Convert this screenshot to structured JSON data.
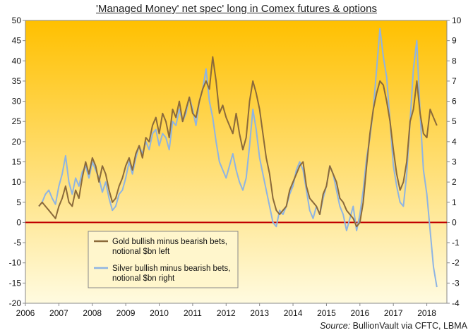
{
  "chart_data": {
    "type": "line",
    "title": "'Managed Money' net spec' long in Comex futures & options",
    "source_label": "Source:",
    "source_text": "BullionVault via CFTC, LBMA",
    "x_ticks": [
      "2006",
      "2007",
      "2008",
      "2009",
      "2010",
      "2011",
      "2012",
      "2013",
      "2014",
      "2015",
      "2016",
      "2017",
      "2018"
    ],
    "xlim": [
      2006,
      2018.6
    ],
    "y_left": {
      "lim": [
        -20,
        50
      ],
      "ticks": [
        "-20",
        "-15",
        "-10",
        "-5",
        "0",
        "5",
        "10",
        "15",
        "20",
        "25",
        "30",
        "35",
        "40",
        "45",
        "50"
      ]
    },
    "y_right": {
      "lim": [
        -4,
        10
      ],
      "ticks": [
        "-4",
        "-3",
        "-2",
        "-1",
        "0",
        "1",
        "2",
        "3",
        "4",
        "5",
        "6",
        "7",
        "8",
        "9",
        "10"
      ]
    },
    "zero_line_color": "#c00000",
    "background_gradient": [
      "#ffc000",
      "#fffbe0"
    ],
    "legend_position": "lower-left",
    "series": [
      {
        "name": "Gold bullish minus bearish bets, notional $bn left",
        "legend_line1": "Gold bullish minus bearish bets,",
        "legend_line2": "notional $bn left",
        "axis": "left",
        "color": "#8b6a3a",
        "x": [
          2006.4,
          2006.5,
          2006.6,
          2006.7,
          2006.8,
          2006.9,
          2007.0,
          2007.1,
          2007.2,
          2007.3,
          2007.4,
          2007.5,
          2007.6,
          2007.7,
          2007.8,
          2007.9,
          2008.0,
          2008.1,
          2008.2,
          2008.3,
          2008.4,
          2008.5,
          2008.6,
          2008.7,
          2008.8,
          2008.9,
          2009.0,
          2009.1,
          2009.2,
          2009.3,
          2009.4,
          2009.5,
          2009.6,
          2009.7,
          2009.8,
          2009.9,
          2010.0,
          2010.1,
          2010.2,
          2010.3,
          2010.4,
          2010.5,
          2010.6,
          2010.7,
          2010.8,
          2010.9,
          2011.0,
          2011.1,
          2011.2,
          2011.3,
          2011.4,
          2011.5,
          2011.6,
          2011.7,
          2011.8,
          2011.9,
          2012.0,
          2012.1,
          2012.2,
          2012.3,
          2012.4,
          2012.5,
          2012.6,
          2012.7,
          2012.8,
          2012.9,
          2013.0,
          2013.1,
          2013.2,
          2013.3,
          2013.4,
          2013.5,
          2013.6,
          2013.7,
          2013.8,
          2013.9,
          2014.0,
          2014.1,
          2014.2,
          2014.3,
          2014.4,
          2014.5,
          2014.6,
          2014.7,
          2014.8,
          2014.9,
          2015.0,
          2015.1,
          2015.2,
          2015.3,
          2015.4,
          2015.5,
          2015.6,
          2015.7,
          2015.8,
          2015.9,
          2016.0,
          2016.1,
          2016.2,
          2016.3,
          2016.4,
          2016.5,
          2016.6,
          2016.7,
          2016.8,
          2016.9,
          2017.0,
          2017.1,
          2017.2,
          2017.3,
          2017.4,
          2017.5,
          2017.6,
          2017.7,
          2017.8,
          2017.9,
          2018.0,
          2018.1,
          2018.2,
          2018.3
        ],
        "values": [
          4,
          5,
          4,
          3,
          2,
          1,
          4,
          6,
          9,
          5,
          4,
          8,
          6,
          11,
          15,
          12,
          16,
          14,
          10,
          14,
          12,
          8,
          5,
          6,
          9,
          11,
          14,
          16,
          13,
          17,
          19,
          16,
          21,
          20,
          24,
          26,
          22,
          27,
          25,
          21,
          28,
          26,
          30,
          25,
          28,
          31,
          27,
          26,
          30,
          33,
          35,
          33,
          41,
          35,
          27,
          29,
          26,
          24,
          22,
          27,
          22,
          18,
          21,
          30,
          35,
          32,
          28,
          22,
          16,
          12,
          6,
          3,
          2,
          3,
          4,
          8,
          10,
          12,
          14,
          15,
          9,
          6,
          5,
          4,
          2,
          7,
          9,
          14,
          12,
          10,
          6,
          5,
          3,
          2,
          1,
          -1,
          0,
          5,
          14,
          22,
          28,
          32,
          35,
          34,
          30,
          25,
          18,
          12,
          8,
          10,
          15,
          25,
          28,
          35,
          27,
          22,
          21,
          28,
          26,
          24
        ]
      },
      {
        "name": "Silver bullish minus bearish bets, notional $bn right",
        "legend_line1": "Silver bullish minus bearish bets,",
        "legend_line2": "notional $bn right",
        "axis": "right",
        "color": "#8eb4e3",
        "x": [
          2006.4,
          2006.5,
          2006.6,
          2006.7,
          2006.8,
          2006.9,
          2007.0,
          2007.1,
          2007.2,
          2007.3,
          2007.4,
          2007.5,
          2007.6,
          2007.7,
          2007.8,
          2007.9,
          2008.0,
          2008.1,
          2008.2,
          2008.3,
          2008.4,
          2008.5,
          2008.6,
          2008.7,
          2008.8,
          2008.9,
          2009.0,
          2009.1,
          2009.2,
          2009.3,
          2009.4,
          2009.5,
          2009.6,
          2009.7,
          2009.8,
          2009.9,
          2010.0,
          2010.1,
          2010.2,
          2010.3,
          2010.4,
          2010.5,
          2010.6,
          2010.7,
          2010.8,
          2010.9,
          2011.0,
          2011.1,
          2011.2,
          2011.3,
          2011.4,
          2011.5,
          2011.6,
          2011.7,
          2011.8,
          2011.9,
          2012.0,
          2012.1,
          2012.2,
          2012.3,
          2012.4,
          2012.5,
          2012.6,
          2012.7,
          2012.8,
          2012.9,
          2013.0,
          2013.1,
          2013.2,
          2013.3,
          2013.4,
          2013.5,
          2013.6,
          2013.7,
          2013.8,
          2013.9,
          2014.0,
          2014.1,
          2014.2,
          2014.3,
          2014.4,
          2014.5,
          2014.6,
          2014.7,
          2014.8,
          2014.9,
          2015.0,
          2015.1,
          2015.2,
          2015.3,
          2015.4,
          2015.5,
          2015.6,
          2015.7,
          2015.8,
          2015.9,
          2016.0,
          2016.1,
          2016.2,
          2016.3,
          2016.4,
          2016.5,
          2016.6,
          2016.7,
          2016.8,
          2016.9,
          2017.0,
          2017.1,
          2017.2,
          2017.3,
          2017.4,
          2017.5,
          2017.6,
          2017.7,
          2017.8,
          2017.9,
          2018.0,
          2018.1,
          2018.2,
          2018.3
        ],
        "values": [
          0.8,
          1.0,
          1.4,
          1.6,
          1.2,
          0.9,
          1.8,
          2.4,
          3.3,
          2.0,
          1.4,
          2.2,
          1.8,
          2.5,
          2.8,
          2.2,
          3.0,
          2.6,
          2.2,
          1.5,
          2.0,
          1.2,
          0.6,
          0.8,
          1.4,
          1.6,
          2.2,
          3.0,
          2.4,
          3.2,
          3.8,
          3.4,
          4.0,
          3.6,
          4.4,
          4.6,
          3.8,
          4.4,
          4.2,
          3.6,
          5.0,
          4.8,
          5.6,
          5.0,
          5.4,
          6.2,
          5.6,
          4.8,
          6.0,
          6.6,
          7.6,
          6.0,
          5.2,
          4.0,
          3.0,
          2.6,
          2.2,
          2.8,
          3.4,
          2.6,
          2.0,
          1.6,
          2.2,
          3.8,
          5.6,
          4.6,
          3.2,
          2.4,
          1.6,
          0.8,
          0.0,
          -0.2,
          0.6,
          0.4,
          0.8,
          1.4,
          1.8,
          2.6,
          3.0,
          2.6,
          1.6,
          0.6,
          0.2,
          0.8,
          0.4,
          1.2,
          1.8,
          2.8,
          2.4,
          1.6,
          0.8,
          0.4,
          -0.4,
          0.2,
          0.8,
          -0.4,
          0.4,
          1.6,
          3.2,
          4.2,
          5.6,
          7.6,
          9.6,
          8.2,
          7.2,
          5.0,
          2.8,
          1.8,
          1.0,
          0.8,
          2.4,
          5.0,
          7.6,
          9.0,
          5.4,
          2.6,
          1.4,
          -0.4,
          -2.2,
          -3.2
        ]
      }
    ]
  }
}
